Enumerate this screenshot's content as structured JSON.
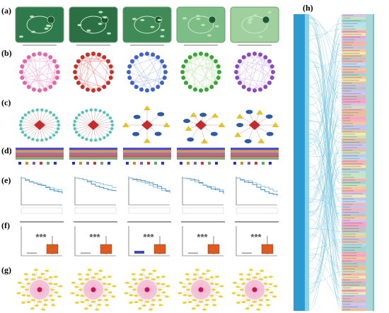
{
  "panels": [
    {
      "label": "(a)"
    },
    {
      "label": "(b)"
    },
    {
      "label": "(c)"
    },
    {
      "label": "(d)"
    },
    {
      "label": "(e)"
    },
    {
      "label": "(f)"
    },
    {
      "label": "(g)"
    },
    {
      "label": "(h)"
    }
  ],
  "significance": [
    "***",
    "***",
    "***",
    "***",
    "***"
  ]
}
